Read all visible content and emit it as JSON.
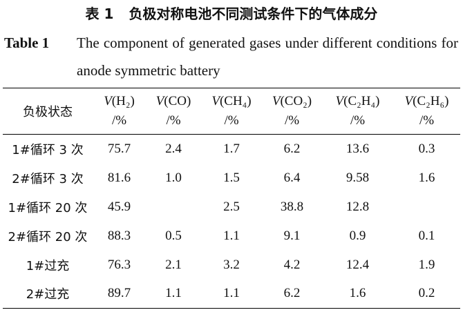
{
  "caption": {
    "cn_label": "表 1",
    "cn_title": "负极对称电池不同测试条件下的气体成分",
    "en_label": "Table 1",
    "en_title": "The component of generated gases under different conditions for anode symmetric battery"
  },
  "table": {
    "corner": "负极状态",
    "columns": [
      {
        "symbol": "V",
        "gas": "(H₂)",
        "unit": "/%"
      },
      {
        "symbol": "V",
        "gas": "(CO)",
        "unit": "/%"
      },
      {
        "symbol": "V",
        "gas": "(CH₄)",
        "unit": "/%"
      },
      {
        "symbol": "V",
        "gas": "(CO₂)",
        "unit": "/%"
      },
      {
        "symbol": "V",
        "gas": "(C₂H₄)",
        "unit": "/%"
      },
      {
        "symbol": "V",
        "gas": "(C₂H₆)",
        "unit": "/%"
      }
    ],
    "rows": [
      [
        "1#循环 3 次",
        "75.7",
        "2.4",
        "1.7",
        "6.2",
        "13.6",
        "0.3"
      ],
      [
        "2#循环 3 次",
        "81.6",
        "1.0",
        "1.5",
        "6.4",
        "9.58",
        "1.6"
      ],
      [
        "1#循环 20 次",
        "45.9",
        null,
        "2.5",
        "38.8",
        "12.8",
        null
      ],
      [
        "2#循环 20 次",
        "88.3",
        "0.5",
        "1.1",
        "9.1",
        "0.9",
        "0.1"
      ],
      [
        "1#过充",
        "76.3",
        "2.1",
        "3.2",
        "4.2",
        "12.4",
        "1.9"
      ],
      [
        "2#过充",
        "89.7",
        "1.1",
        "1.1",
        "6.2",
        "1.6",
        "0.2"
      ]
    ]
  }
}
